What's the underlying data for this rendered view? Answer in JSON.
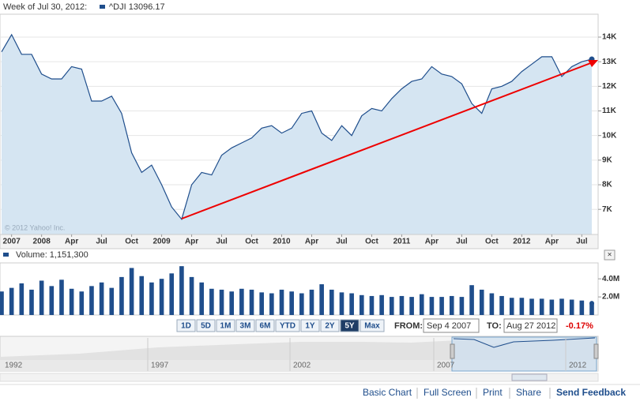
{
  "chart_data": [
    {
      "type": "line",
      "title": "Week of Jul 30, 2012:",
      "x": [
        "2007-09",
        "2007-10",
        "2007-11",
        "2007-12",
        "2008-01",
        "2008-02",
        "2008-03",
        "2008-04",
        "2008-05",
        "2008-06",
        "2008-07",
        "2008-08",
        "2008-09",
        "2008-10",
        "2008-11",
        "2008-12",
        "2009-01",
        "2009-02",
        "2009-03",
        "2009-04",
        "2009-05",
        "2009-06",
        "2009-07",
        "2009-08",
        "2009-09",
        "2009-10",
        "2009-11",
        "2009-12",
        "2010-01",
        "2010-02",
        "2010-03",
        "2010-04",
        "2010-05",
        "2010-06",
        "2010-07",
        "2010-08",
        "2010-09",
        "2010-10",
        "2010-11",
        "2010-12",
        "2011-01",
        "2011-02",
        "2011-03",
        "2011-04",
        "2011-05",
        "2011-06",
        "2011-07",
        "2011-08",
        "2011-09",
        "2011-10",
        "2011-11",
        "2011-12",
        "2012-01",
        "2012-02",
        "2012-03",
        "2012-04",
        "2012-05",
        "2012-06",
        "2012-07",
        "2012-08"
      ],
      "series": [
        {
          "name": "^DJI 13096.17",
          "color": "#1f4e8c",
          "values": [
            13400,
            14100,
            13300,
            13300,
            12500,
            12300,
            12300,
            12800,
            12700,
            11400,
            11400,
            11600,
            10900,
            9300,
            8500,
            8800,
            8000,
            7100,
            6600,
            8000,
            8500,
            8400,
            9200,
            9500,
            9700,
            9900,
            10300,
            10400,
            10100,
            10300,
            10900,
            11000,
            10100,
            9800,
            10400,
            10000,
            10800,
            11100,
            11000,
            11500,
            11900,
            12200,
            12300,
            12800,
            12500,
            12400,
            12100,
            11300,
            10900,
            11900,
            12000,
            12200,
            12600,
            12900,
            13200,
            13200,
            12400,
            12800,
            13000,
            13100
          ]
        }
      ],
      "xlim": [
        "2007-09",
        "2012-08"
      ],
      "xticks": [
        {
          "value": "2007-10",
          "label": "2007"
        },
        {
          "value": "2008-01",
          "label": "2008"
        },
        {
          "value": "2008-04",
          "label": "Apr"
        },
        {
          "value": "2008-07",
          "label": "Jul"
        },
        {
          "value": "2008-10",
          "label": "Oct"
        },
        {
          "value": "2009-01",
          "label": "2009"
        },
        {
          "value": "2009-04",
          "label": "Apr"
        },
        {
          "value": "2009-07",
          "label": "Jul"
        },
        {
          "value": "2009-10",
          "label": "Oct"
        },
        {
          "value": "2010-01",
          "label": "2010"
        },
        {
          "value": "2010-04",
          "label": "Apr"
        },
        {
          "value": "2010-07",
          "label": "Jul"
        },
        {
          "value": "2010-10",
          "label": "Oct"
        },
        {
          "value": "2011-01",
          "label": "2011"
        },
        {
          "value": "2011-04",
          "label": "Apr"
        },
        {
          "value": "2011-07",
          "label": "Jul"
        },
        {
          "value": "2011-10",
          "label": "Oct"
        },
        {
          "value": "2012-01",
          "label": "2012"
        },
        {
          "value": "2012-04",
          "label": "Apr"
        },
        {
          "value": "2012-07",
          "label": "Jul"
        }
      ],
      "ylim": [
        5980,
        14930
      ],
      "yticks": [
        {
          "value": 7000,
          "label": "7K"
        },
        {
          "value": 8000,
          "label": "8K"
        },
        {
          "value": 9000,
          "label": "9K"
        },
        {
          "value": 10000,
          "label": "10K"
        },
        {
          "value": 11000,
          "label": "11K"
        },
        {
          "value": 12000,
          "label": "12K"
        },
        {
          "value": 13000,
          "label": "13K"
        },
        {
          "value": 14000,
          "label": "14K"
        }
      ],
      "grid": true,
      "annotation": "© 2012 Yahoo! Inc."
    },
    {
      "type": "bar",
      "title": "Volume: 1,151,300",
      "color": "#1f4e8c",
      "x": [
        "2007-09",
        "2007-10",
        "2007-11",
        "2007-12",
        "2008-01",
        "2008-02",
        "2008-03",
        "2008-04",
        "2008-05",
        "2008-06",
        "2008-07",
        "2008-08",
        "2008-09",
        "2008-10",
        "2008-11",
        "2008-12",
        "2009-01",
        "2009-02",
        "2009-03",
        "2009-04",
        "2009-05",
        "2009-06",
        "2009-07",
        "2009-08",
        "2009-09",
        "2009-10",
        "2009-11",
        "2009-12",
        "2010-01",
        "2010-02",
        "2010-03",
        "2010-04",
        "2010-05",
        "2010-06",
        "2010-07",
        "2010-08",
        "2010-09",
        "2010-10",
        "2010-11",
        "2010-12",
        "2011-01",
        "2011-02",
        "2011-03",
        "2011-04",
        "2011-05",
        "2011-06",
        "2011-07",
        "2011-08",
        "2011-09",
        "2011-10",
        "2011-11",
        "2011-12",
        "2012-01",
        "2012-02",
        "2012-03",
        "2012-04",
        "2012-05",
        "2012-06",
        "2012-07",
        "2012-08"
      ],
      "values": [
        2600000,
        3000000,
        3500000,
        2800000,
        3800000,
        3200000,
        3900000,
        2900000,
        2600000,
        3200000,
        3600000,
        3000000,
        4200000,
        5200000,
        4300000,
        3600000,
        4000000,
        4600000,
        5400000,
        4200000,
        3600000,
        2900000,
        2800000,
        2600000,
        2900000,
        2800000,
        2500000,
        2400000,
        2800000,
        2600000,
        2400000,
        2800000,
        3400000,
        2800000,
        2500000,
        2400000,
        2200000,
        2100000,
        2200000,
        2000000,
        2100000,
        2000000,
        2300000,
        2000000,
        2000000,
        2100000,
        2000000,
        3300000,
        2800000,
        2400000,
        2100000,
        1900000,
        1900000,
        1800000,
        1800000,
        1700000,
        1800000,
        1700000,
        1600000,
        1300000
      ],
      "xlim": [
        "2007-09",
        "2012-08"
      ],
      "ylim": [
        0,
        5500000
      ],
      "yticks": [
        {
          "value": 2000000,
          "label": "2.0M"
        },
        {
          "value": 4000000,
          "label": "4.0M"
        }
      ]
    }
  ],
  "controls": {
    "ranges": [
      "1D",
      "5D",
      "1M",
      "3M",
      "6M",
      "YTD",
      "1Y",
      "2Y",
      "5Y",
      "Max"
    ],
    "selected": "5Y",
    "from_label": "FROM:",
    "from": "Sep 4 2007",
    "to_label": "TO:",
    "to": "Aug 27 2012",
    "change": "-0.17%"
  },
  "navigator": {
    "labels": [
      "1992",
      "1997",
      "2002",
      "2007",
      "2012"
    ]
  },
  "footer": {
    "links": [
      "Basic Chart",
      "Full Screen",
      "Print",
      "Share",
      "Send Feedback"
    ]
  }
}
